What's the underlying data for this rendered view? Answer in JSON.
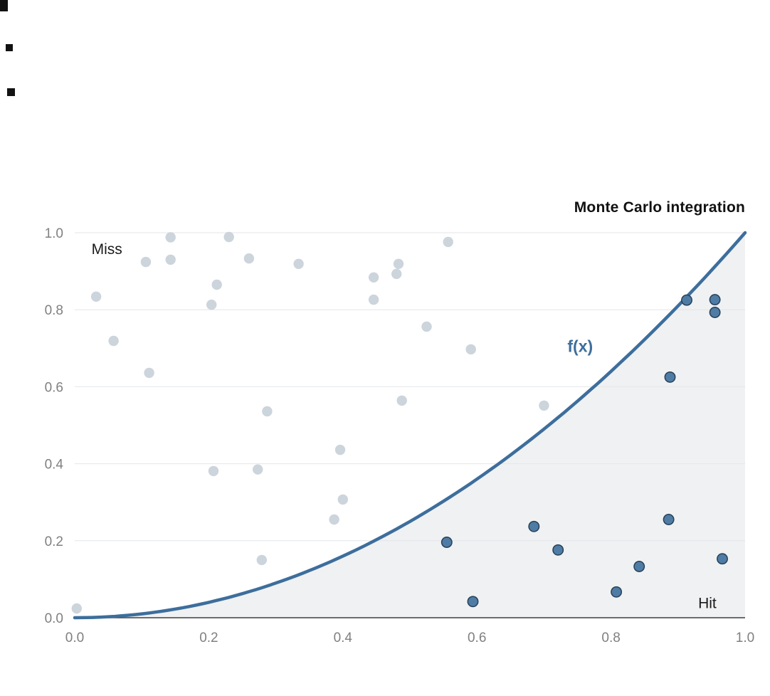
{
  "chart_data": {
    "type": "scatter",
    "title": "Monte Carlo integration",
    "xlabel": "",
    "ylabel": "",
    "xlim": [
      0,
      1
    ],
    "ylim": [
      0,
      1
    ],
    "grid": "horizontal",
    "legend_position": "none",
    "x_ticks": [
      "0.0",
      "0.2",
      "0.4",
      "0.6",
      "0.8",
      "1.0"
    ],
    "y_ticks": [
      "0.0",
      "0.2",
      "0.4",
      "0.6",
      "0.8",
      "1.0"
    ],
    "colors": {
      "area": "#f0f1f2",
      "grid": "#e4e6e9",
      "axis": "#3f3f3f",
      "tick": "#808080",
      "title": "#111111"
    },
    "curve": {
      "label": "f(x)",
      "exponent": 2,
      "color": "#3d6e9c",
      "stroke_width": 4.5
    },
    "annotations": [
      {
        "text": "Miss",
        "x": 0.025,
        "y": 0.945,
        "color": "#1a1a1a",
        "size": 21,
        "weight": "normal"
      },
      {
        "text": "Hit",
        "x": 0.93,
        "y": 0.025,
        "color": "#1a1a1a",
        "size": 21,
        "weight": "normal"
      },
      {
        "text": "f(x)",
        "x": 0.735,
        "y": 0.69,
        "color": "#3d6e9c",
        "size": 23,
        "weight": "bold"
      }
    ],
    "series": [
      {
        "name": "Miss",
        "color": "#c6cfd8",
        "outline": "none",
        "fill_opacity": 0.9,
        "points": [
          [
            0.032,
            0.834
          ],
          [
            0.058,
            0.719
          ],
          [
            0.111,
            0.636
          ],
          [
            0.106,
            0.924
          ],
          [
            0.143,
            0.988
          ],
          [
            0.143,
            0.93
          ],
          [
            0.212,
            0.865
          ],
          [
            0.204,
            0.813
          ],
          [
            0.23,
            0.989
          ],
          [
            0.26,
            0.933
          ],
          [
            0.207,
            0.381
          ],
          [
            0.273,
            0.385
          ],
          [
            0.287,
            0.536
          ],
          [
            0.279,
            0.15
          ],
          [
            0.334,
            0.919
          ],
          [
            0.396,
            0.436
          ],
          [
            0.4,
            0.307
          ],
          [
            0.387,
            0.255
          ],
          [
            0.446,
            0.884
          ],
          [
            0.446,
            0.826
          ],
          [
            0.48,
            0.893
          ],
          [
            0.483,
            0.919
          ],
          [
            0.488,
            0.564
          ],
          [
            0.525,
            0.756
          ],
          [
            0.557,
            0.976
          ],
          [
            0.591,
            0.697
          ],
          [
            0.7,
            0.551
          ],
          [
            0.003,
            0.024
          ]
        ]
      },
      {
        "name": "Hit",
        "color": "#4e7ca4",
        "outline": "#27405a",
        "fill_opacity": 1,
        "points": [
          [
            0.555,
            0.196
          ],
          [
            0.594,
            0.042
          ],
          [
            0.685,
            0.237
          ],
          [
            0.721,
            0.176
          ],
          [
            0.808,
            0.067
          ],
          [
            0.842,
            0.133
          ],
          [
            0.886,
            0.255
          ],
          [
            0.888,
            0.625
          ],
          [
            0.913,
            0.825
          ],
          [
            0.955,
            0.826
          ],
          [
            0.955,
            0.793
          ],
          [
            0.966,
            0.153
          ]
        ]
      }
    ]
  }
}
